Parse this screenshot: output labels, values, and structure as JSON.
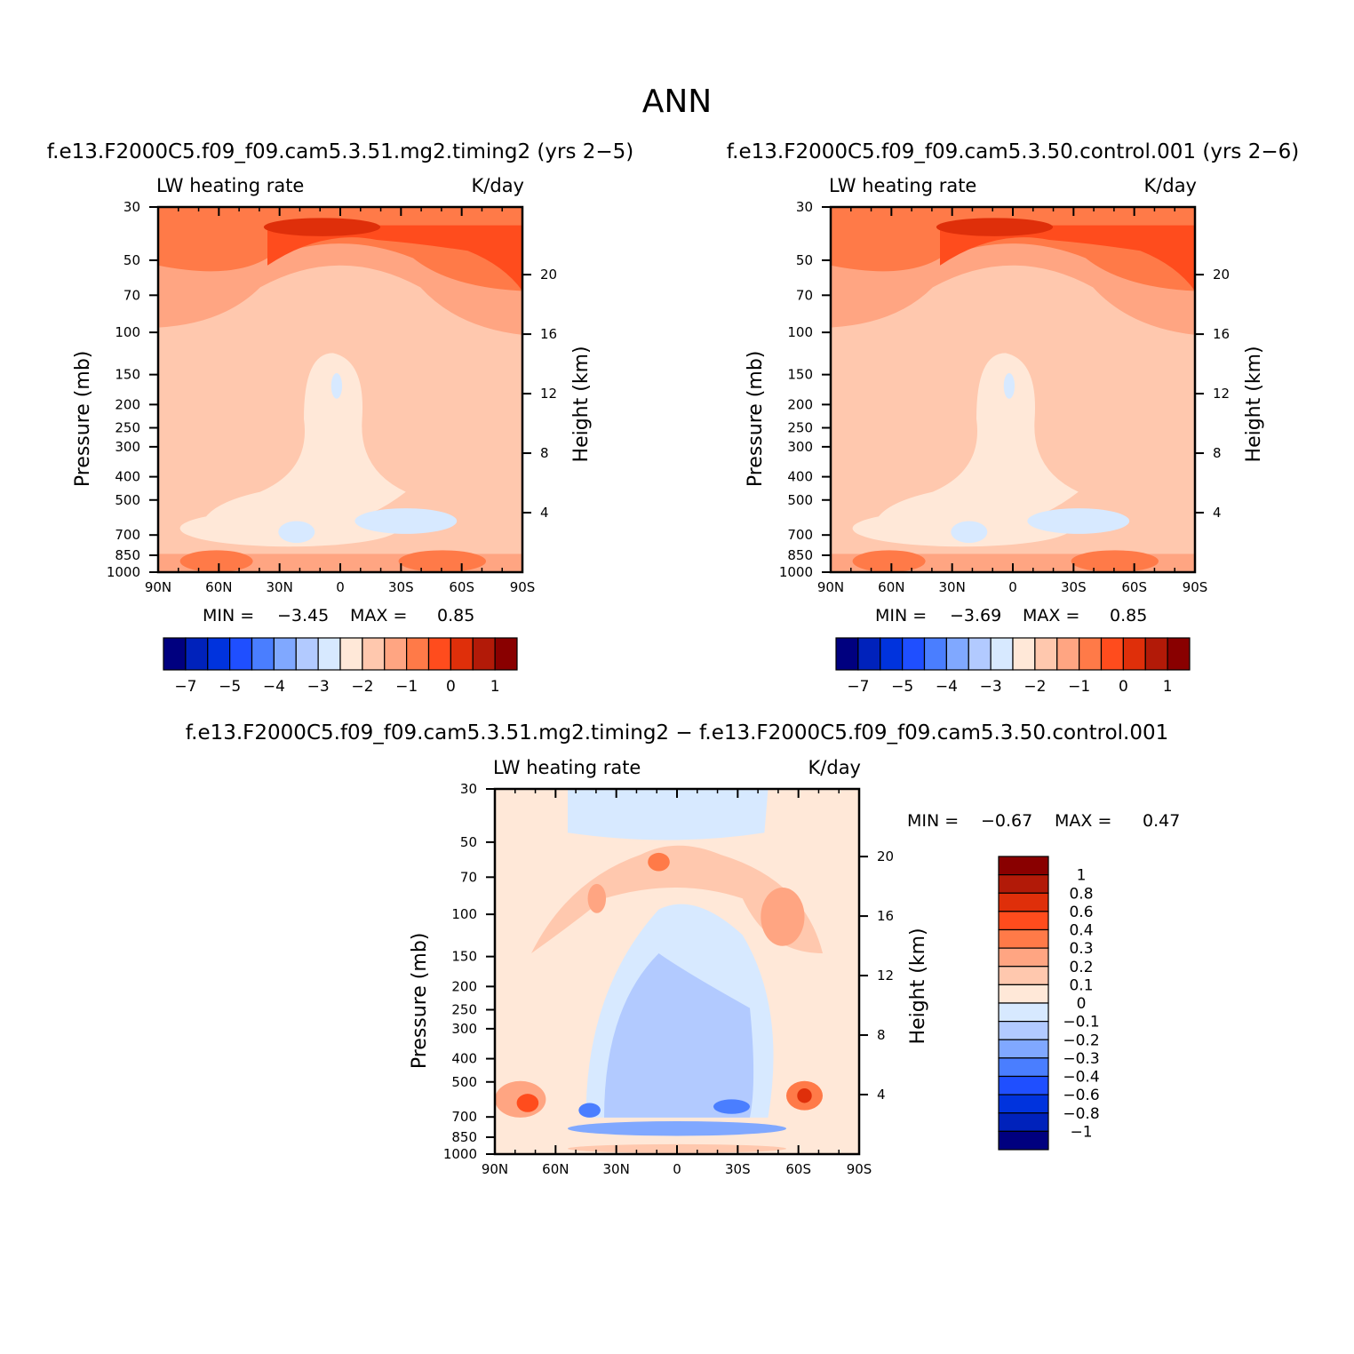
{
  "figure_title": "ANN",
  "chart_data": [
    {
      "type": "heatmap",
      "id": "case1",
      "case_title": "f.e13.F2000C5.f09_f09.cam5.3.51.mg2.timing2 (yrs 2−5)",
      "variable_label": "LW heating rate",
      "units_label": "K/day",
      "xlabel": "",
      "ylabel": "Pressure (mb)",
      "ylabel_right": "Height (km)",
      "x_ticks": [
        "90N",
        "60N",
        "30N",
        "0",
        "30S",
        "60S",
        "90S"
      ],
      "x_values": [
        90,
        60,
        30,
        0,
        -30,
        -60,
        -90
      ],
      "y_ticks": [
        "30",
        "50",
        "70",
        "100",
        "150",
        "200",
        "250",
        "300",
        "400",
        "500",
        "700",
        "850",
        "1000"
      ],
      "y_values": [
        30,
        50,
        70,
        100,
        150,
        200,
        250,
        300,
        400,
        500,
        700,
        850,
        1000
      ],
      "y_right_ticks": [
        "20",
        "16",
        "12",
        "8",
        "4"
      ],
      "y_right_values": [
        20,
        16,
        12,
        8,
        4
      ],
      "ylim": [
        30,
        1000
      ],
      "stats": {
        "min_label": "MIN =",
        "min": "−3.45",
        "max_label": "MAX =",
        "max": "0.85"
      },
      "colorbar": {
        "orientation": "horizontal",
        "colors": [
          "#00007f",
          "#0022bb",
          "#0033dd",
          "#1f4fff",
          "#4a7eff",
          "#80a8ff",
          "#b2caff",
          "#d7e9ff",
          "#ffe8d8",
          "#ffc8ae",
          "#ffa582",
          "#ff7a48",
          "#ff4c1d",
          "#df2f0a",
          "#b21a08",
          "#890000"
        ],
        "labels": [
          "−7",
          "−5",
          "−4",
          "−3",
          "−2",
          "−1",
          "0",
          "1"
        ]
      }
    },
    {
      "type": "heatmap",
      "id": "case2",
      "case_title": "f.e13.F2000C5.f09_f09.cam5.3.50.control.001 (yrs 2−6)",
      "variable_label": "LW heating rate",
      "units_label": "K/day",
      "xlabel": "",
      "ylabel": "Pressure (mb)",
      "ylabel_right": "Height (km)",
      "x_ticks": [
        "90N",
        "60N",
        "30N",
        "0",
        "30S",
        "60S",
        "90S"
      ],
      "x_values": [
        90,
        60,
        30,
        0,
        -30,
        -60,
        -90
      ],
      "y_ticks": [
        "30",
        "50",
        "70",
        "100",
        "150",
        "200",
        "250",
        "300",
        "400",
        "500",
        "700",
        "850",
        "1000"
      ],
      "y_values": [
        30,
        50,
        70,
        100,
        150,
        200,
        250,
        300,
        400,
        500,
        700,
        850,
        1000
      ],
      "y_right_ticks": [
        "20",
        "16",
        "12",
        "8",
        "4"
      ],
      "y_right_values": [
        20,
        16,
        12,
        8,
        4
      ],
      "ylim": [
        30,
        1000
      ],
      "stats": {
        "min_label": "MIN =",
        "min": "−3.69",
        "max_label": "MAX =",
        "max": "0.85"
      },
      "colorbar": {
        "orientation": "horizontal",
        "colors": [
          "#00007f",
          "#0022bb",
          "#0033dd",
          "#1f4fff",
          "#4a7eff",
          "#80a8ff",
          "#b2caff",
          "#d7e9ff",
          "#ffe8d8",
          "#ffc8ae",
          "#ffa582",
          "#ff7a48",
          "#ff4c1d",
          "#df2f0a",
          "#b21a08",
          "#890000"
        ],
        "labels": [
          "−7",
          "−5",
          "−4",
          "−3",
          "−2",
          "−1",
          "0",
          "1"
        ]
      }
    },
    {
      "type": "heatmap",
      "id": "diff",
      "case_title": "f.e13.F2000C5.f09_f09.cam5.3.51.mg2.timing2 − f.e13.F2000C5.f09_f09.cam5.3.50.control.001",
      "variable_label": "LW heating rate",
      "units_label": "K/day",
      "xlabel": "",
      "ylabel": "Pressure (mb)",
      "ylabel_right": "Height (km)",
      "x_ticks": [
        "90N",
        "60N",
        "30N",
        "0",
        "30S",
        "60S",
        "90S"
      ],
      "x_values": [
        90,
        60,
        30,
        0,
        -30,
        -60,
        -90
      ],
      "y_ticks": [
        "30",
        "50",
        "70",
        "100",
        "150",
        "200",
        "250",
        "300",
        "400",
        "500",
        "700",
        "850",
        "1000"
      ],
      "y_values": [
        30,
        50,
        70,
        100,
        150,
        200,
        250,
        300,
        400,
        500,
        700,
        850,
        1000
      ],
      "y_right_ticks": [
        "20",
        "16",
        "12",
        "8",
        "4"
      ],
      "y_right_values": [
        20,
        16,
        12,
        8,
        4
      ],
      "ylim": [
        30,
        1000
      ],
      "stats": {
        "min_label": "MIN =",
        "min": "−0.67",
        "max_label": "MAX =",
        "max": "0.47"
      },
      "colorbar": {
        "orientation": "vertical",
        "colors": [
          "#890000",
          "#b21a08",
          "#df2f0a",
          "#ff4c1d",
          "#ff7a48",
          "#ffa582",
          "#ffc8ae",
          "#ffe8d8",
          "#d7e9ff",
          "#b2caff",
          "#80a8ff",
          "#4a7eff",
          "#1f4fff",
          "#0033dd",
          "#0022bb",
          "#00007f"
        ],
        "labels": [
          "1",
          "0.8",
          "0.6",
          "0.4",
          "0.3",
          "0.2",
          "0.1",
          "0",
          "−0.1",
          "−0.2",
          "−0.3",
          "−0.4",
          "−0.6",
          "−0.8",
          "−1"
        ]
      }
    }
  ]
}
